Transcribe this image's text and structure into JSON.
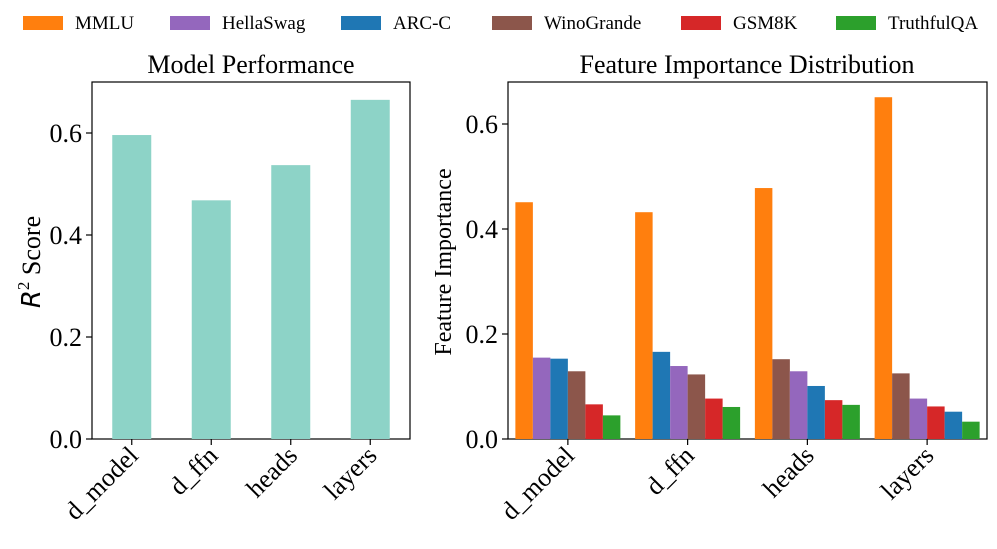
{
  "legend": {
    "items": [
      {
        "name": "MMLU",
        "color": "#ff7f0e"
      },
      {
        "name": "HellaSwag",
        "color": "#9467bd"
      },
      {
        "name": "ARC-C",
        "color": "#1f77b4"
      },
      {
        "name": "WinoGrande",
        "color": "#8c564b"
      },
      {
        "name": "GSM8K",
        "color": "#d62728"
      },
      {
        "name": "TruthfulQA",
        "color": "#2ca02c"
      }
    ]
  },
  "chart_data": [
    {
      "type": "bar",
      "title": "Model Performance",
      "ylabel_prefix": "R",
      "ylabel_sup": "2",
      "ylabel_suffix": " Score",
      "xlabel": "",
      "categories": [
        "d_model",
        "d_ffn",
        "heads",
        "layers"
      ],
      "values": [
        0.596,
        0.468,
        0.537,
        0.665
      ],
      "color": "#8dd3c7",
      "ylim": [
        0,
        0.7
      ],
      "yticks": [
        0.0,
        0.2,
        0.4,
        0.6
      ],
      "ytick_labels": [
        "0.0",
        "0.2",
        "0.4",
        "0.6"
      ]
    },
    {
      "type": "bar",
      "title": "Feature Importance Distribution",
      "ylabel": "Feature Importance",
      "xlabel": "",
      "categories": [
        "d_model",
        "d_ffn",
        "heads",
        "layers"
      ],
      "ylim": [
        0,
        0.68
      ],
      "yticks": [
        0.0,
        0.2,
        0.4,
        0.6
      ],
      "ytick_labels": [
        "0.0",
        "0.2",
        "0.4",
        "0.6"
      ],
      "groups": [
        {
          "category": "d_model",
          "bars": [
            {
              "series": "MMLU",
              "value": 0.451
            },
            {
              "series": "HellaSwag",
              "value": 0.155
            },
            {
              "series": "ARC-C",
              "value": 0.153
            },
            {
              "series": "WinoGrande",
              "value": 0.129
            },
            {
              "series": "GSM8K",
              "value": 0.066
            },
            {
              "series": "TruthfulQA",
              "value": 0.045
            }
          ]
        },
        {
          "category": "d_ffn",
          "bars": [
            {
              "series": "MMLU",
              "value": 0.432
            },
            {
              "series": "ARC-C",
              "value": 0.166
            },
            {
              "series": "HellaSwag",
              "value": 0.139
            },
            {
              "series": "WinoGrande",
              "value": 0.123
            },
            {
              "series": "GSM8K",
              "value": 0.077
            },
            {
              "series": "TruthfulQA",
              "value": 0.061
            }
          ]
        },
        {
          "category": "heads",
          "bars": [
            {
              "series": "MMLU",
              "value": 0.478
            },
            {
              "series": "WinoGrande",
              "value": 0.152
            },
            {
              "series": "HellaSwag",
              "value": 0.129
            },
            {
              "series": "ARC-C",
              "value": 0.101
            },
            {
              "series": "GSM8K",
              "value": 0.074
            },
            {
              "series": "TruthfulQA",
              "value": 0.065
            }
          ]
        },
        {
          "category": "layers",
          "bars": [
            {
              "series": "MMLU",
              "value": 0.651
            },
            {
              "series": "WinoGrande",
              "value": 0.125
            },
            {
              "series": "HellaSwag",
              "value": 0.077
            },
            {
              "series": "GSM8K",
              "value": 0.062
            },
            {
              "series": "ARC-C",
              "value": 0.052
            },
            {
              "series": "TruthfulQA",
              "value": 0.033
            }
          ]
        }
      ]
    }
  ]
}
